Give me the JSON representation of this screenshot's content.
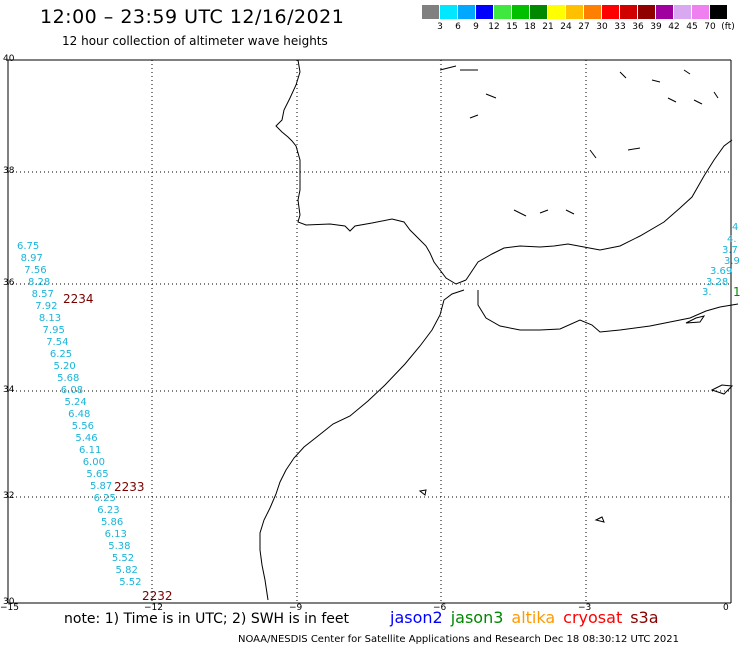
{
  "header": {
    "title": "12:00 – 23:59 UTC 12/16/2021",
    "subtitle": "12 hour collection of altimeter wave heights"
  },
  "color_scale": {
    "swatches": [
      "#808080",
      "#00e8ff",
      "#00a8ff",
      "#0000ff",
      "#3fe83f",
      "#00c000",
      "#008800",
      "#ffff00",
      "#ffc000",
      "#ff8000",
      "#ff0000",
      "#d00000",
      "#900000",
      "#a000a0",
      "#d8a8f0",
      "#f080f0",
      "#000000"
    ],
    "labels": [
      "3",
      "6",
      "9",
      "12",
      "15",
      "18",
      "21",
      "24",
      "27",
      "30",
      "33",
      "36",
      "39",
      "42",
      "45",
      "70",
      "(ft)"
    ]
  },
  "axes": {
    "y_labels": [
      "40",
      "38",
      "36",
      "34",
      "32",
      "30"
    ],
    "x_labels": [
      "−15",
      "−12",
      "−9",
      "−6",
      "−3",
      "0"
    ]
  },
  "tracks": {
    "west_values": [
      "6.75",
      "8.97",
      "7.56",
      "8.28",
      "8.57",
      "7.92",
      "8.13",
      "7.95",
      "7.54",
      "6.25",
      "5.20",
      "5.68",
      "6.08",
      "5.24",
      "6.48",
      "5.56",
      "5.46",
      "6.11",
      "6.00",
      "5.65",
      "5.87",
      "6.25",
      "6.23",
      "5.86",
      "6.13",
      "5.38",
      "5.52",
      "5.82",
      "5.52"
    ],
    "pass_labels": [
      "2234",
      "2233",
      "2232"
    ],
    "east_values": [
      "4",
      "4.",
      "3.7",
      "3.94",
      "3.69",
      "3.28",
      "3.",
      "1"
    ]
  },
  "footer": {
    "note": "note: 1) Time is in UTC; 2) SWH is in feet",
    "legend": [
      {
        "name": "jason2",
        "color": "#0000ff"
      },
      {
        "name": "jason3",
        "color": "#008800"
      },
      {
        "name": "altika",
        "color": "#ff9900"
      },
      {
        "name": "cryosat",
        "color": "#ff0000"
      },
      {
        "name": "s3a",
        "color": "#880000"
      }
    ],
    "credit": "NOAA/NESDIS Center for Satellite Applications and Research    Dec 18 08:30:12 UTC 2021"
  }
}
